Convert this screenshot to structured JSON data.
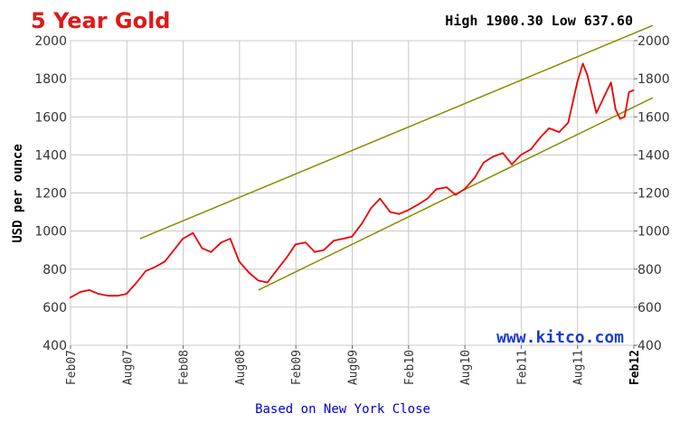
{
  "chart_data": {
    "type": "line",
    "title": "5 Year Gold",
    "high_low_text": "High 1900.30 Low 637.60",
    "ylabel": "USD per ounce",
    "footer": "Based on New York Close",
    "watermark": "www.kitco.com",
    "x_tick_labels": [
      "Feb07",
      "Aug07",
      "Feb08",
      "Aug08",
      "Feb09",
      "Aug09",
      "Feb10",
      "Aug10",
      "Feb11",
      "Aug11",
      "Feb12"
    ],
    "x_range": [
      2007.083,
      2012.083
    ],
    "ylim": [
      400,
      2000
    ],
    "yticks": [
      400,
      600,
      800,
      1000,
      1200,
      1400,
      1600,
      1800,
      2000
    ],
    "grid": true,
    "colors": {
      "title": "#e01818",
      "series": "#ee0000",
      "trendline": "#8b8b00",
      "footer": "#0000cc",
      "watermark": "#1a3ccc",
      "grid": "#c8c8c8",
      "axis": "#666666"
    },
    "series": [
      {
        "x": [
          2007.08,
          2007.17,
          2007.25,
          2007.33,
          2007.42,
          2007.5,
          2007.58,
          2007.67,
          2007.75,
          2007.83,
          2007.92,
          2008.0,
          2008.08,
          2008.17,
          2008.25,
          2008.33,
          2008.42,
          2008.5,
          2008.58,
          2008.67,
          2008.75,
          2008.83,
          2008.92,
          2009.0,
          2009.08,
          2009.17,
          2009.25,
          2009.33,
          2009.42,
          2009.5,
          2009.58,
          2009.67,
          2009.75,
          2009.83,
          2009.92,
          2010.0,
          2010.08,
          2010.17,
          2010.25,
          2010.33,
          2010.42,
          2010.5,
          2010.58,
          2010.67,
          2010.75,
          2010.83,
          2010.92,
          2011.0,
          2011.08,
          2011.17,
          2011.25,
          2011.33,
          2011.42,
          2011.5,
          2011.58,
          2011.63,
          2011.67,
          2011.75,
          2011.83,
          2011.88,
          2011.92,
          2011.96,
          2012.0,
          2012.04,
          2012.08
        ],
        "values": [
          650,
          680,
          690,
          670,
          660,
          660,
          670,
          730,
          790,
          810,
          840,
          900,
          960,
          990,
          910,
          890,
          940,
          960,
          840,
          780,
          740,
          730,
          800,
          860,
          930,
          940,
          890,
          900,
          950,
          960,
          970,
          1040,
          1120,
          1170,
          1100,
          1090,
          1110,
          1140,
          1170,
          1220,
          1230,
          1190,
          1220,
          1280,
          1360,
          1390,
          1410,
          1350,
          1400,
          1430,
          1490,
          1540,
          1520,
          1570,
          1780,
          1880,
          1820,
          1620,
          1720,
          1780,
          1640,
          1590,
          1600,
          1730,
          1740
        ]
      }
    ],
    "trendlines": [
      {
        "x": [
          2007.7,
          2012.25
        ],
        "values": [
          960,
          2080
        ]
      },
      {
        "x": [
          2008.75,
          2012.25
        ],
        "values": [
          690,
          1700
        ]
      }
    ]
  }
}
